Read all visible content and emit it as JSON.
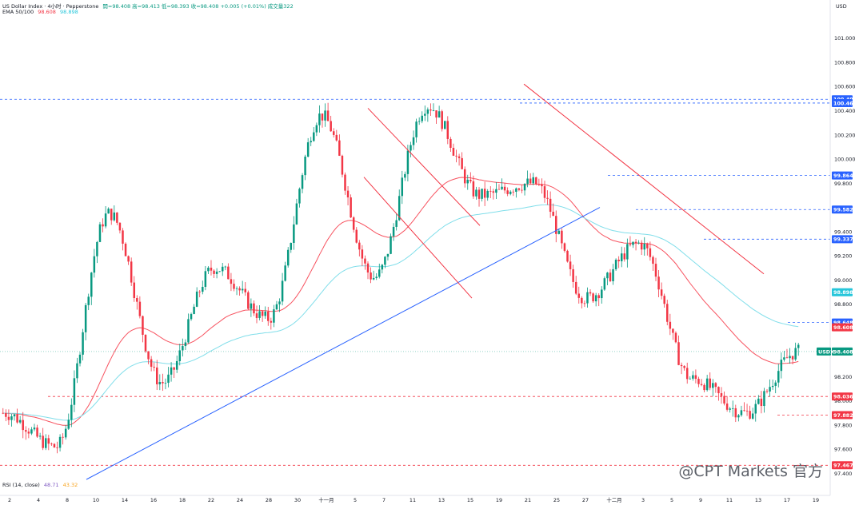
{
  "header": {
    "title": "US Dollar Index · 4小时 · Pepperstone",
    "ohlc": "開=98.408  高=98.413  低=98.393  收=98.408  +0.005 (+0.01%)  成交量322",
    "ema_label": "EMA 50/100",
    "ema50_value": "98.608",
    "ema100_value": "98.898"
  },
  "rsi_label": {
    "name": "RSI (14, close)",
    "v1": "48.71",
    "v2": "43.32"
  },
  "watermark": "@CPT Markets 官方",
  "chart_data": {
    "type": "line",
    "currency": "USD",
    "y_ticks": [
      "101.000",
      "100.800",
      "100.600",
      "100.400",
      "100.200",
      "100.000",
      "99.800",
      "99.600",
      "99.400",
      "99.200",
      "99.000",
      "98.800",
      "98.600",
      "98.400",
      "98.200",
      "98.000",
      "97.800",
      "97.600",
      "97.400"
    ],
    "x_ticks": [
      "2",
      "4",
      "8",
      "10",
      "14",
      "16",
      "18",
      "22",
      "24",
      "28",
      "30",
      "十一月",
      "5",
      "7",
      "11",
      "13",
      "15",
      "19",
      "21",
      "25",
      "27",
      "十二月",
      "3",
      "5",
      "9",
      "11",
      "13",
      "17",
      "19"
    ],
    "price_tags": [
      {
        "label": "100.494",
        "color": "#2962ff"
      },
      {
        "label": "100.463",
        "color": "#2962ff"
      },
      {
        "label": "99.864",
        "color": "#2962ff"
      },
      {
        "label": "99.582",
        "color": "#2962ff"
      },
      {
        "label": "99.337",
        "color": "#2962ff"
      },
      {
        "label": "98.898",
        "color": "#26c6da"
      },
      {
        "label": "98.648",
        "color": "#2962ff"
      },
      {
        "label": "98.608",
        "color": "#f23645"
      },
      {
        "label": "98.408",
        "color": "#089981"
      },
      {
        "label": "98.036",
        "color": "#f23645"
      },
      {
        "label": "97.882",
        "color": "#f23645"
      },
      {
        "label": "97.467",
        "color": "#f23645"
      }
    ],
    "symbol_tag": "USDX",
    "key_prices": [
      {
        "name": "start",
        "value": 97.9
      },
      {
        "name": "low-oct2",
        "value": 97.62
      },
      {
        "name": "high-oct10",
        "value": 99.55
      },
      {
        "name": "low-oct17",
        "value": 98.15
      },
      {
        "name": "high-oct22",
        "value": 99.1
      },
      {
        "name": "low-oct30",
        "value": 98.68
      },
      {
        "name": "high-nov5",
        "value": 100.36
      },
      {
        "name": "low-nov14",
        "value": 99.02
      },
      {
        "name": "high-nov21",
        "value": 100.44
      },
      {
        "name": "low-nov27",
        "value": 99.7
      },
      {
        "name": "high-dec1",
        "value": 99.8
      },
      {
        "name": "low-dec4",
        "value": 98.85
      },
      {
        "name": "high-dec9",
        "value": 99.3
      },
      {
        "name": "low-dec11",
        "value": 98.18
      },
      {
        "name": "low-dec17",
        "value": 97.9
      },
      {
        "name": "last",
        "value": 98.408
      }
    ],
    "series": [
      {
        "name": "EMA 50",
        "color": "#f7525f",
        "last": 98.608
      },
      {
        "name": "EMA 100",
        "color": "#80deea",
        "last": 98.898
      }
    ],
    "ylim": [
      97.35,
      101.15
    ]
  }
}
